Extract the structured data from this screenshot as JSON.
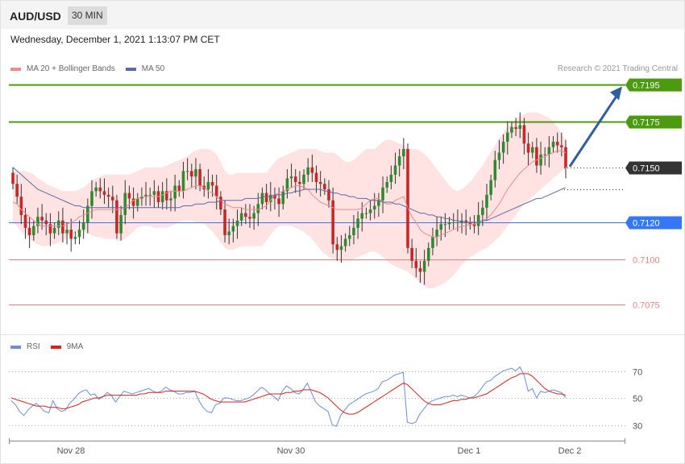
{
  "header": {
    "symbol": "AUD/USD",
    "timeframe": "30 MIN"
  },
  "date_text": "Wednesday, December 1, 2021 1:13:07 PM CET",
  "legend_main": {
    "bb_label": "MA 20 + Bollinger Bands",
    "ma50_label": "MA 50"
  },
  "credit": "Research © 2021 Trading Central",
  "legend_rsi": {
    "rsi_label": "RSI",
    "ma_label": "9MA"
  },
  "colors": {
    "bb_band": "#ffe3e3",
    "bb_ma": "#f08a8a",
    "ma50": "#5a6aaa",
    "up": "#2e8b2e",
    "down": "#c62828",
    "green_level": "#4c9a0e",
    "blue_level": "#3478f6",
    "red_level": "#f08080",
    "current": "#333333",
    "arrow": "#2f5f9f",
    "rsi": "#6a8ed8",
    "rsi_ma": "#e01e1e"
  },
  "chart_data": [
    {
      "type": "candlestick",
      "title": "AUD/USD",
      "ylim": [
        0.706,
        0.7205
      ],
      "x_labels": [
        "Nov 28",
        "Nov 30",
        "Dec 1",
        "Dec 2"
      ],
      "levels": [
        {
          "label": "0.7195",
          "value": 0.7195,
          "kind": "resistance"
        },
        {
          "label": "0.7175",
          "value": 0.7175,
          "kind": "resistance"
        },
        {
          "label": "0.7150",
          "value": 0.715,
          "kind": "current"
        },
        {
          "label": "0.7120",
          "value": 0.712,
          "kind": "pivot"
        },
        {
          "label": "0.7100",
          "value": 0.71,
          "kind": "support"
        },
        {
          "label": "0.7075",
          "value": 0.7075,
          "kind": "support"
        }
      ],
      "close": [
        0.7141,
        0.7134,
        0.7124,
        0.7117,
        0.7113,
        0.7118,
        0.7123,
        0.7121,
        0.7119,
        0.7114,
        0.7117,
        0.7121,
        0.7114,
        0.7116,
        0.7111,
        0.7112,
        0.7116,
        0.712,
        0.7129,
        0.7137,
        0.7139,
        0.7137,
        0.7135,
        0.7134,
        0.7132,
        0.7114,
        0.7124,
        0.7136,
        0.7133,
        0.7129,
        0.7133,
        0.7134,
        0.7135,
        0.7135,
        0.7137,
        0.7131,
        0.7137,
        0.7132,
        0.7133,
        0.714,
        0.7137,
        0.7148,
        0.7148,
        0.7145,
        0.7149,
        0.714,
        0.7138,
        0.7142,
        0.714,
        0.7134,
        0.7127,
        0.7113,
        0.7115,
        0.7118,
        0.7121,
        0.7125,
        0.7123,
        0.7122,
        0.7125,
        0.713,
        0.7136,
        0.7131,
        0.7135,
        0.7133,
        0.713,
        0.7137,
        0.7144,
        0.7145,
        0.7142,
        0.7141,
        0.7146,
        0.715,
        0.7147,
        0.7142,
        0.7141,
        0.7138,
        0.7132,
        0.7108,
        0.7105,
        0.7107,
        0.7111,
        0.7113,
        0.7117,
        0.7122,
        0.7125,
        0.7125,
        0.7127,
        0.7129,
        0.7132,
        0.7139,
        0.7142,
        0.7146,
        0.7151,
        0.7156,
        0.716,
        0.7106,
        0.7099,
        0.7095,
        0.7093,
        0.7099,
        0.7106,
        0.7112,
        0.7116,
        0.7119,
        0.7119,
        0.712,
        0.712,
        0.712,
        0.7121,
        0.712,
        0.7119,
        0.7118,
        0.7124,
        0.7128,
        0.7135,
        0.7143,
        0.7154,
        0.7158,
        0.7164,
        0.7169,
        0.7172,
        0.7171,
        0.7173,
        0.7163,
        0.7158,
        0.7161,
        0.7151,
        0.7157,
        0.7157,
        0.7161,
        0.7164,
        0.7162,
        0.7161,
        0.715
      ],
      "ma20": [
        0.7131,
        0.713,
        0.7127,
        0.7125,
        0.7123,
        0.7121,
        0.7119,
        0.7118,
        0.7118,
        0.7118,
        0.7118,
        0.7118,
        0.7118,
        0.7119,
        0.712,
        0.7121,
        0.7123,
        0.7124,
        0.7125,
        0.7126,
        0.7127,
        0.7127,
        0.7127,
        0.7127,
        0.7127,
        0.7127,
        0.7127,
        0.7128,
        0.713,
        0.7132,
        0.7133,
        0.7134,
        0.7134,
        0.7134,
        0.7134,
        0.7134,
        0.7135,
        0.7136,
        0.7137,
        0.7137,
        0.7137,
        0.7137,
        0.7138,
        0.7139,
        0.714,
        0.714,
        0.7139,
        0.7137,
        0.7136,
        0.7134,
        0.7132,
        0.713,
        0.7129,
        0.7128,
        0.7128,
        0.7128,
        0.7127,
        0.7127,
        0.7127,
        0.7127,
        0.7128,
        0.7129,
        0.7132,
        0.7135,
        0.7136,
        0.7137,
        0.7138,
        0.7139,
        0.714,
        0.714,
        0.7139,
        0.7138,
        0.7135,
        0.7133,
        0.7131,
        0.713,
        0.7129,
        0.7128,
        0.7127,
        0.7127,
        0.7127,
        0.7127,
        0.7127,
        0.7127,
        0.7128,
        0.713,
        0.7132,
        0.7133,
        0.7133,
        0.7131,
        0.713,
        0.713,
        0.7132,
        0.7133,
        0.7134,
        0.7128,
        0.7123,
        0.712,
        0.7116,
        0.7114,
        0.7113,
        0.7112,
        0.7112,
        0.7113,
        0.7114,
        0.7115,
        0.7116,
        0.7117,
        0.7118,
        0.7118,
        0.7119,
        0.7119,
        0.712,
        0.7121,
        0.7122,
        0.7124,
        0.7127,
        0.713,
        0.7134,
        0.7138,
        0.7141,
        0.7144,
        0.7147,
        0.7149,
        0.7151,
        0.7153,
        0.7154,
        0.7155,
        0.7156,
        0.7157,
        0.7158,
        0.7159,
        0.7159,
        0.7158
      ],
      "ma50": [
        0.715,
        0.7148,
        0.7146,
        0.7144,
        0.7142,
        0.714,
        0.7138,
        0.7137,
        0.7136,
        0.7135,
        0.7134,
        0.7133,
        0.7132,
        0.7131,
        0.713,
        0.7129,
        0.7129,
        0.7128,
        0.7128,
        0.7128,
        0.7128,
        0.7128,
        0.7128,
        0.7128,
        0.7128,
        0.7128,
        0.7128,
        0.7128,
        0.7128,
        0.7128,
        0.7128,
        0.7128,
        0.7128,
        0.7128,
        0.7128,
        0.7128,
        0.7128,
        0.7128,
        0.7128,
        0.7128,
        0.7128,
        0.7129,
        0.7129,
        0.7129,
        0.713,
        0.713,
        0.713,
        0.7131,
        0.7131,
        0.7131,
        0.7132,
        0.7132,
        0.7132,
        0.7132,
        0.7132,
        0.7132,
        0.7133,
        0.7133,
        0.7133,
        0.7133,
        0.7134,
        0.7134,
        0.7134,
        0.7135,
        0.7135,
        0.7135,
        0.7136,
        0.7136,
        0.7137,
        0.7137,
        0.7138,
        0.7138,
        0.7138,
        0.7138,
        0.7138,
        0.7137,
        0.7137,
        0.7136,
        0.7136,
        0.7135,
        0.7135,
        0.7134,
        0.7134,
        0.7133,
        0.7133,
        0.7133,
        0.7132,
        0.7132,
        0.7132,
        0.7131,
        0.7131,
        0.7131,
        0.713,
        0.713,
        0.7129,
        0.7128,
        0.7127,
        0.7126,
        0.7125,
        0.7125,
        0.7124,
        0.7124,
        0.7123,
        0.7123,
        0.7122,
        0.7122,
        0.7121,
        0.7121,
        0.712,
        0.712,
        0.712,
        0.712,
        0.712,
        0.7121,
        0.7121,
        0.7122,
        0.7123,
        0.7124,
        0.7125,
        0.7126,
        0.7127,
        0.7128,
        0.7129,
        0.713,
        0.7131,
        0.7132,
        0.7133,
        0.7133,
        0.7134,
        0.7135,
        0.7136,
        0.7137,
        0.7138,
        0.7139
      ],
      "bb_upper": [
        0.7148,
        0.7148,
        0.7148,
        0.7148,
        0.7147,
        0.7146,
        0.7144,
        0.7143,
        0.7141,
        0.714,
        0.7139,
        0.7138,
        0.7137,
        0.7137,
        0.7137,
        0.7137,
        0.7138,
        0.7139,
        0.7141,
        0.7143,
        0.7144,
        0.7145,
        0.7146,
        0.7146,
        0.7146,
        0.7146,
        0.7146,
        0.7146,
        0.7146,
        0.7147,
        0.7148,
        0.7149,
        0.715,
        0.715,
        0.715,
        0.715,
        0.715,
        0.7151,
        0.7152,
        0.7153,
        0.7154,
        0.7155,
        0.7156,
        0.7158,
        0.7159,
        0.716,
        0.716,
        0.716,
        0.7159,
        0.7157,
        0.7153,
        0.7148,
        0.7146,
        0.7146,
        0.7147,
        0.7147,
        0.7147,
        0.7147,
        0.7147,
        0.7147,
        0.7147,
        0.7147,
        0.715,
        0.7153,
        0.7155,
        0.7156,
        0.7157,
        0.7158,
        0.7159,
        0.716,
        0.716,
        0.716,
        0.716,
        0.716,
        0.7159,
        0.7158,
        0.7158,
        0.7158,
        0.7157,
        0.7155,
        0.7153,
        0.7153,
        0.7154,
        0.7156,
        0.7158,
        0.716,
        0.716,
        0.716,
        0.7162,
        0.7164,
        0.7165,
        0.7165,
        0.7164,
        0.7163,
        0.7162,
        0.716,
        0.716,
        0.716,
        0.7159,
        0.7157,
        0.7155,
        0.7152,
        0.7149,
        0.7146,
        0.7143,
        0.714,
        0.7138,
        0.7137,
        0.7138,
        0.714,
        0.7142,
        0.7145,
        0.7148,
        0.7151,
        0.7155,
        0.7158,
        0.7162,
        0.7166,
        0.7169,
        0.7172,
        0.7174,
        0.7176,
        0.7178,
        0.7179,
        0.718,
        0.718,
        0.718,
        0.7179,
        0.7178,
        0.7177,
        0.7175,
        0.7172,
        0.7168,
        0.7165
      ],
      "bb_lower": [
        0.712,
        0.7118,
        0.7115,
        0.7113,
        0.7111,
        0.7109,
        0.7108,
        0.7107,
        0.7107,
        0.7108,
        0.7108,
        0.7109,
        0.711,
        0.7112,
        0.7113,
        0.7114,
        0.7115,
        0.7115,
        0.7114,
        0.7113,
        0.7112,
        0.7112,
        0.7111,
        0.7111,
        0.7111,
        0.711,
        0.711,
        0.7111,
        0.7113,
        0.7115,
        0.7117,
        0.7118,
        0.7118,
        0.7118,
        0.7117,
        0.7117,
        0.7117,
        0.7117,
        0.7118,
        0.7119,
        0.712,
        0.7121,
        0.7121,
        0.7121,
        0.712,
        0.712,
        0.7119,
        0.7117,
        0.7115,
        0.7112,
        0.7109,
        0.7106,
        0.7105,
        0.7105,
        0.7106,
        0.7107,
        0.7107,
        0.7107,
        0.7107,
        0.7107,
        0.7107,
        0.711,
        0.7113,
        0.7116,
        0.7118,
        0.7118,
        0.7118,
        0.7118,
        0.7117,
        0.7116,
        0.7115,
        0.7113,
        0.7111,
        0.7108,
        0.7105,
        0.7103,
        0.7101,
        0.71,
        0.7099,
        0.7099,
        0.7099,
        0.7099,
        0.71,
        0.7101,
        0.7102,
        0.7103,
        0.7104,
        0.7104,
        0.7103,
        0.7101,
        0.7099,
        0.7097,
        0.7096,
        0.7095,
        0.7094,
        0.7093,
        0.7091,
        0.7089,
        0.7087,
        0.7085,
        0.7084,
        0.7084,
        0.7085,
        0.7086,
        0.7087,
        0.7089,
        0.7091,
        0.7094,
        0.7097,
        0.7099,
        0.7101,
        0.7102,
        0.7104,
        0.7105,
        0.7106,
        0.7108,
        0.711,
        0.7112,
        0.7115,
        0.7118,
        0.7121,
        0.7124,
        0.7127,
        0.713,
        0.7132,
        0.7134,
        0.7136,
        0.7138,
        0.714,
        0.7142,
        0.7144,
        0.7146,
        0.7148,
        0.715
      ]
    },
    {
      "type": "line",
      "ylim": [
        20,
        80
      ],
      "y_ticks": [
        70,
        50,
        30
      ],
      "series": [
        {
          "name": "RSI",
          "values": [
            48,
            45,
            40,
            37,
            41,
            44,
            46,
            43,
            40,
            39,
            48,
            42,
            40,
            41,
            46,
            49,
            53,
            55,
            56,
            52,
            53,
            49,
            51,
            54,
            52,
            47,
            51,
            55,
            54,
            53,
            54,
            55,
            56,
            57,
            55,
            54,
            55,
            58,
            56,
            55,
            53,
            53,
            54,
            54,
            55,
            48,
            43,
            40,
            39,
            45,
            46,
            50,
            50,
            49,
            48,
            48,
            49,
            50,
            52,
            55,
            58,
            56,
            53,
            51,
            48,
            55,
            59,
            57,
            54,
            53,
            56,
            61,
            54,
            47,
            44,
            42,
            40,
            30,
            29,
            37,
            41,
            45,
            47,
            49,
            51,
            53,
            54,
            55,
            57,
            62,
            63,
            65,
            67,
            68,
            69,
            32,
            31,
            32,
            38,
            42,
            46,
            48,
            49,
            50,
            51,
            51,
            52,
            51,
            52,
            51,
            50,
            51,
            54,
            58,
            62,
            63,
            66,
            68,
            70,
            71,
            72,
            70,
            73,
            67,
            55,
            57,
            50,
            55,
            54,
            55,
            56,
            55,
            54,
            50
          ]
        },
        {
          "name": "9MA",
          "values": [
            50,
            49,
            48,
            47,
            46,
            45,
            44,
            44,
            44,
            43,
            43,
            43,
            42,
            42,
            43,
            44,
            45,
            47,
            48,
            49,
            50,
            50,
            51,
            52,
            52,
            52,
            52,
            52,
            52,
            52,
            52,
            53,
            53,
            54,
            54,
            54,
            54,
            55,
            55,
            55,
            55,
            55,
            55,
            55,
            55,
            54,
            53,
            51,
            49,
            48,
            47,
            47,
            47,
            47,
            47,
            47,
            47,
            48,
            49,
            50,
            51,
            52,
            53,
            53,
            53,
            53,
            54,
            54,
            55,
            55,
            56,
            56,
            56,
            55,
            54,
            52,
            50,
            47,
            44,
            41,
            39,
            38,
            38,
            39,
            41,
            43,
            45,
            47,
            49,
            51,
            53,
            55,
            57,
            59,
            61,
            60,
            57,
            54,
            51,
            48,
            46,
            45,
            45,
            45,
            46,
            47,
            48,
            48,
            49,
            49,
            50,
            50,
            51,
            52,
            53,
            55,
            57,
            59,
            61,
            63,
            65,
            66,
            68,
            68,
            68,
            66,
            63,
            60,
            57,
            55,
            54,
            53,
            53,
            52
          ]
        }
      ]
    }
  ]
}
